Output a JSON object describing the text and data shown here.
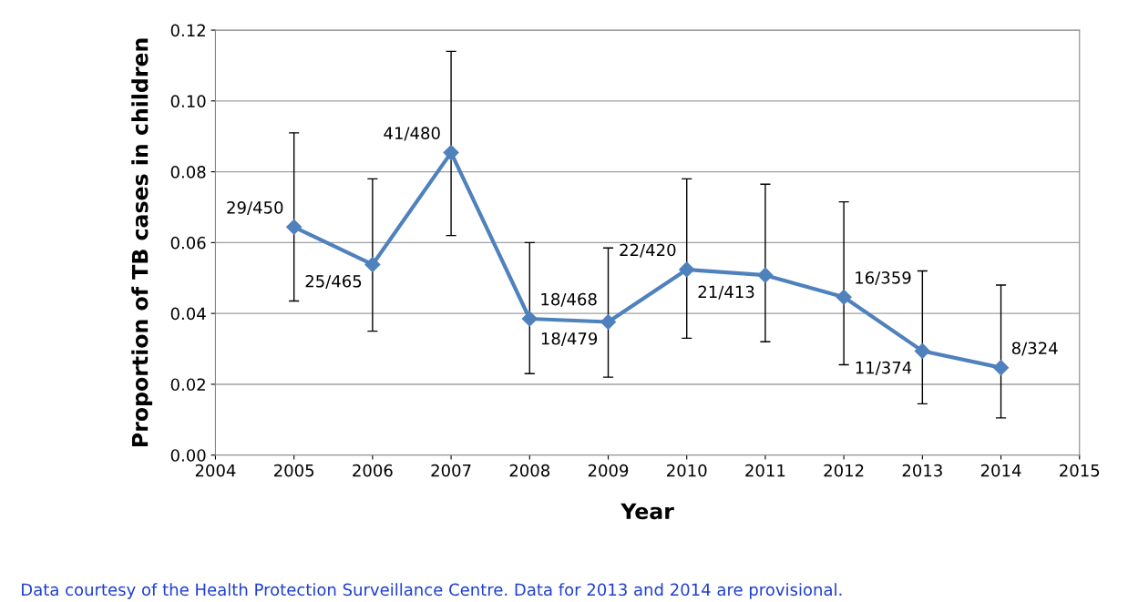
{
  "chart_data": {
    "type": "line",
    "xlabel": "Year",
    "ylabel": "Proportion of TB cases in children",
    "x": [
      2005,
      2006,
      2007,
      2008,
      2009,
      2010,
      2011,
      2012,
      2013,
      2014
    ],
    "series": [
      {
        "color": "#4f81bd",
        "values": [
          0.0644,
          0.0538,
          0.0854,
          0.0385,
          0.0376,
          0.0524,
          0.0508,
          0.0446,
          0.0294,
          0.0247
        ],
        "errors": [
          [
            0.0435,
            0.091
          ],
          [
            0.035,
            0.078
          ],
          [
            0.062,
            0.114
          ],
          [
            0.023,
            0.06
          ],
          [
            0.022,
            0.0585
          ],
          [
            0.033,
            0.078
          ],
          [
            0.032,
            0.0765
          ],
          [
            0.0255,
            0.0715
          ],
          [
            0.0145,
            0.052
          ],
          [
            0.0105,
            0.048
          ]
        ],
        "value_labels": [
          "29/450",
          "25/465",
          "41/480",
          "18/468",
          "18/479",
          "22/420",
          "21/413",
          "16/359",
          "11/374",
          "8/324"
        ]
      }
    ],
    "marker": "diamond",
    "line_style": "solid",
    "xlim": [
      2004,
      2015
    ],
    "xticks": [
      2004,
      2005,
      2006,
      2007,
      2008,
      2009,
      2010,
      2011,
      2012,
      2013,
      2014,
      2015
    ],
    "ylim": [
      0,
      0.12
    ],
    "yticks": [
      {
        "value": 0,
        "label": "0.00"
      },
      {
        "value": 0.02,
        "label": "0.02"
      },
      {
        "value": 0.04,
        "label": "0.04"
      },
      {
        "value": 0.06,
        "label": "0.06"
      },
      {
        "value": 0.08,
        "label": "0.08"
      },
      {
        "value": 0.1,
        "label": "0.10"
      },
      {
        "value": 0.12,
        "label": "0.12"
      }
    ],
    "grid": "y",
    "legend": false,
    "annotations": [
      "Data courtesy of the Health Protection Surveillance Centre. Data for 2013 and 2014 are provisional."
    ]
  }
}
